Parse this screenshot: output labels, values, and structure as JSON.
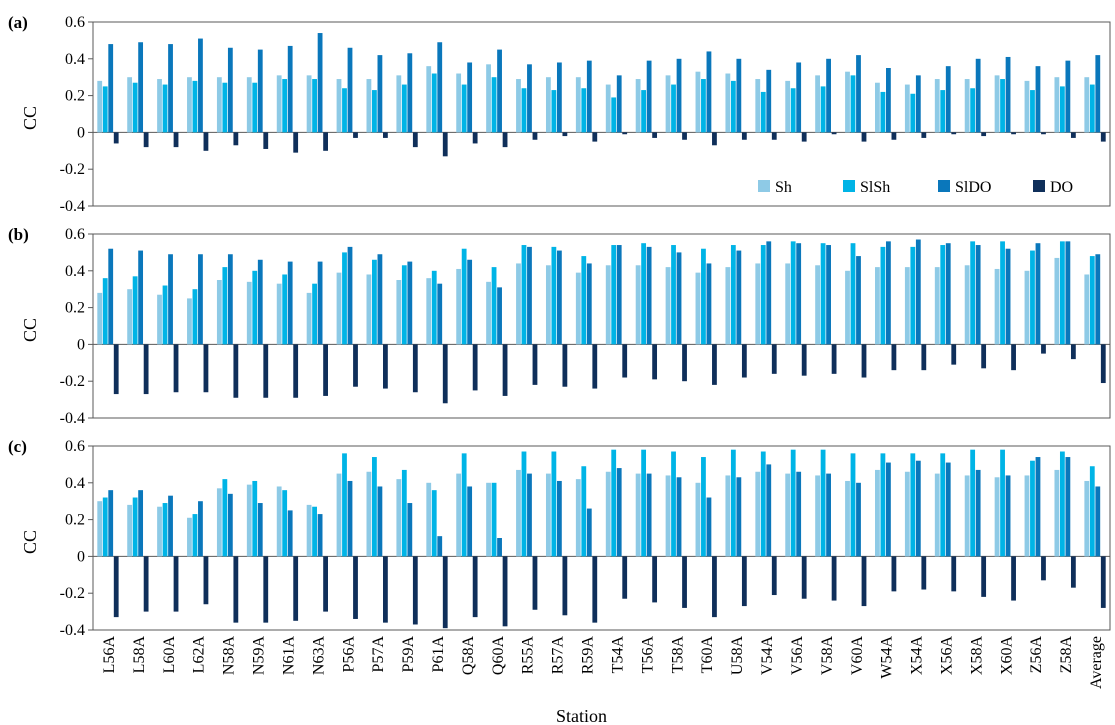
{
  "chart_data": {
    "type": "bar",
    "xlabel": "Station",
    "ylabel": "CC",
    "grid": false,
    "legend_position": "bottom-right inside panel (a)",
    "series_colors": {
      "Sh": "#8ecae6",
      "SlSh": "#00b4e6",
      "SlDO": "#0a77bb",
      "DO": "#0f2f5a"
    },
    "categories": [
      "L56A",
      "L58A",
      "L60A",
      "L62A",
      "N58A",
      "N59A",
      "N61A",
      "N63A",
      "P56A",
      "P57A",
      "P59A",
      "P61A",
      "Q58A",
      "Q60A",
      "R55A",
      "R57A",
      "R59A",
      "T54A",
      "T56A",
      "T58A",
      "T60A",
      "U58A",
      "V54A",
      "V56A",
      "V58A",
      "V60A",
      "W54A",
      "X54A",
      "X56A",
      "X58A",
      "X60A",
      "Z56A",
      "Z58A",
      "Average"
    ],
    "panels": [
      {
        "label": "(a)",
        "ylim": [
          -0.4,
          0.6
        ],
        "yticks": [
          "-0.4",
          "-0.2",
          "0",
          "0.2",
          "0.4",
          "0.6"
        ],
        "series": [
          {
            "name": "Sh",
            "values": [
              0.28,
              0.3,
              0.29,
              0.3,
              0.3,
              0.3,
              0.31,
              0.31,
              0.29,
              0.29,
              0.31,
              0.36,
              0.32,
              0.37,
              0.29,
              0.3,
              0.3,
              0.26,
              0.29,
              0.31,
              0.33,
              0.32,
              0.29,
              0.28,
              0.31,
              0.33,
              0.27,
              0.26,
              0.29,
              0.29,
              0.31,
              0.28,
              0.3,
              0.3
            ]
          },
          {
            "name": "SlSh",
            "values": [
              0.25,
              0.27,
              0.26,
              0.28,
              0.27,
              0.27,
              0.29,
              0.29,
              0.24,
              0.23,
              0.26,
              0.32,
              0.26,
              0.3,
              0.24,
              0.23,
              0.24,
              0.19,
              0.23,
              0.26,
              0.29,
              0.28,
              0.22,
              0.24,
              0.25,
              0.31,
              0.22,
              0.21,
              0.23,
              0.24,
              0.29,
              0.23,
              0.25,
              0.26
            ]
          },
          {
            "name": "SlDO",
            "values": [
              0.48,
              0.49,
              0.48,
              0.51,
              0.46,
              0.45,
              0.47,
              0.54,
              0.46,
              0.42,
              0.43,
              0.49,
              0.38,
              0.45,
              0.37,
              0.38,
              0.39,
              0.31,
              0.39,
              0.4,
              0.44,
              0.4,
              0.34,
              0.38,
              0.4,
              0.42,
              0.35,
              0.31,
              0.36,
              0.4,
              0.41,
              0.36,
              0.39,
              0.42
            ]
          },
          {
            "name": "DO",
            "values": [
              -0.06,
              -0.08,
              -0.08,
              -0.1,
              -0.07,
              -0.09,
              -0.11,
              -0.1,
              -0.03,
              -0.03,
              -0.08,
              -0.13,
              -0.06,
              -0.08,
              -0.04,
              -0.02,
              -0.05,
              -0.01,
              -0.03,
              -0.04,
              -0.07,
              -0.04,
              -0.04,
              -0.05,
              -0.01,
              -0.05,
              -0.04,
              -0.03,
              -0.01,
              -0.02,
              -0.01,
              -0.01,
              -0.03,
              -0.05
            ]
          }
        ]
      },
      {
        "label": "(b)",
        "ylim": [
          -0.4,
          0.6
        ],
        "yticks": [
          "-0.4",
          "-0.2",
          "0",
          "0.2",
          "0.4",
          "0.6"
        ],
        "series": [
          {
            "name": "Sh",
            "values": [
              0.28,
              0.3,
              0.27,
              0.25,
              0.35,
              0.34,
              0.33,
              0.28,
              0.39,
              0.38,
              0.35,
              0.36,
              0.41,
              0.34,
              0.44,
              0.43,
              0.39,
              0.43,
              0.43,
              0.42,
              0.39,
              0.42,
              0.44,
              0.44,
              0.43,
              0.4,
              0.42,
              0.42,
              0.42,
              0.43,
              0.41,
              0.4,
              0.47,
              0.38
            ]
          },
          {
            "name": "SlSh",
            "values": [
              0.36,
              0.37,
              0.32,
              0.3,
              0.42,
              0.4,
              0.38,
              0.33,
              0.5,
              0.46,
              0.43,
              0.4,
              0.52,
              0.42,
              0.54,
              0.53,
              0.48,
              0.54,
              0.55,
              0.54,
              0.52,
              0.54,
              0.54,
              0.56,
              0.55,
              0.55,
              0.53,
              0.53,
              0.54,
              0.56,
              0.56,
              0.51,
              0.56,
              0.48
            ]
          },
          {
            "name": "SlDO",
            "values": [
              0.52,
              0.51,
              0.49,
              0.49,
              0.49,
              0.46,
              0.45,
              0.45,
              0.53,
              0.49,
              0.45,
              0.33,
              0.46,
              0.31,
              0.53,
              0.51,
              0.44,
              0.54,
              0.53,
              0.5,
              0.44,
              0.51,
              0.56,
              0.55,
              0.54,
              0.48,
              0.56,
              0.57,
              0.55,
              0.54,
              0.52,
              0.55,
              0.56,
              0.49
            ]
          },
          {
            "name": "DO",
            "values": [
              -0.27,
              -0.27,
              -0.26,
              -0.26,
              -0.29,
              -0.29,
              -0.29,
              -0.28,
              -0.23,
              -0.24,
              -0.26,
              -0.32,
              -0.25,
              -0.28,
              -0.22,
              -0.23,
              -0.24,
              -0.18,
              -0.19,
              -0.2,
              -0.22,
              -0.18,
              -0.16,
              -0.17,
              -0.16,
              -0.18,
              -0.14,
              -0.14,
              -0.11,
              -0.13,
              -0.14,
              -0.05,
              -0.08,
              -0.21
            ]
          }
        ]
      },
      {
        "label": "(c)",
        "ylim": [
          -0.4,
          0.6
        ],
        "yticks": [
          "-0.4",
          "-0.2",
          "0",
          "0.2",
          "0.4",
          "0.6"
        ],
        "series": [
          {
            "name": "Sh",
            "values": [
              0.3,
              0.28,
              0.27,
              0.21,
              0.37,
              0.39,
              0.38,
              0.28,
              0.45,
              0.46,
              0.42,
              0.4,
              0.45,
              0.4,
              0.47,
              0.45,
              0.42,
              0.46,
              0.45,
              0.44,
              0.4,
              0.44,
              0.46,
              0.45,
              0.44,
              0.41,
              0.47,
              0.46,
              0.45,
              0.44,
              0.43,
              0.44,
              0.47,
              0.41
            ]
          },
          {
            "name": "SlSh",
            "values": [
              0.32,
              0.32,
              0.29,
              0.23,
              0.42,
              0.41,
              0.36,
              0.27,
              0.56,
              0.54,
              0.47,
              0.36,
              0.56,
              0.4,
              0.57,
              0.57,
              0.49,
              0.58,
              0.58,
              0.57,
              0.54,
              0.58,
              0.57,
              0.58,
              0.58,
              0.56,
              0.56,
              0.56,
              0.56,
              0.58,
              0.58,
              0.52,
              0.57,
              0.49
            ]
          },
          {
            "name": "SlDO",
            "values": [
              0.36,
              0.36,
              0.33,
              0.3,
              0.34,
              0.29,
              0.25,
              0.23,
              0.41,
              0.38,
              0.29,
              0.11,
              0.38,
              0.1,
              0.45,
              0.41,
              0.26,
              0.48,
              0.45,
              0.43,
              0.32,
              0.43,
              0.5,
              0.46,
              0.45,
              0.4,
              0.51,
              0.52,
              0.51,
              0.47,
              0.44,
              0.54,
              0.54,
              0.38
            ]
          },
          {
            "name": "DO",
            "values": [
              -0.33,
              -0.3,
              -0.3,
              -0.26,
              -0.36,
              -0.36,
              -0.35,
              -0.3,
              -0.34,
              -0.36,
              -0.37,
              -0.39,
              -0.33,
              -0.38,
              -0.29,
              -0.32,
              -0.36,
              -0.23,
              -0.25,
              -0.28,
              -0.33,
              -0.27,
              -0.21,
              -0.23,
              -0.24,
              -0.27,
              -0.19,
              -0.18,
              -0.19,
              -0.22,
              -0.24,
              -0.13,
              -0.17,
              -0.28
            ]
          }
        ]
      }
    ]
  }
}
